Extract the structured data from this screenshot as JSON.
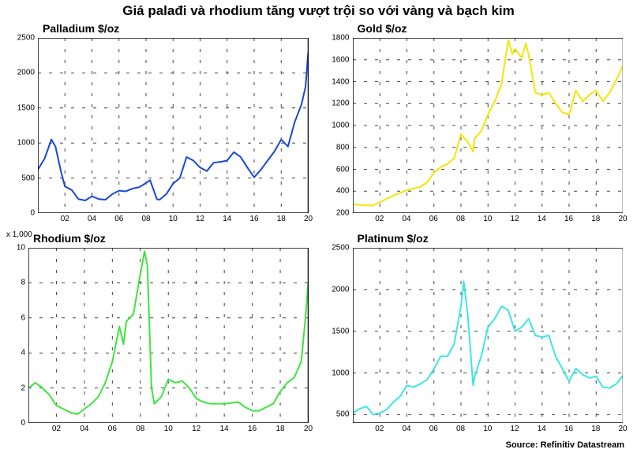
{
  "title": "Giá palađi và rhodium tăng vượt trội so với vàng và bạch kim",
  "source_label": "Source: Refinitiv Datastream",
  "layout": {
    "rows": 2,
    "cols": 2
  },
  "global": {
    "background_color": "#ffffff",
    "plot_bg_color": "#ffffff",
    "axis_color": "#000000",
    "grid_color": "#444444",
    "tick_fontsize": 10,
    "title_fontsize": 14,
    "main_title_fontsize": 17
  },
  "panels": [
    {
      "id": "palladium",
      "title": "Palladium $/oz",
      "type": "line",
      "line_color": "#1848d8",
      "line_width": 2,
      "xlim": [
        2000,
        2020
      ],
      "ylim": [
        0,
        2500
      ],
      "ytick_step": 500,
      "yticks": [
        0,
        500,
        1000,
        1500,
        2000,
        2500
      ],
      "xticks": [
        2002,
        2004,
        2006,
        2008,
        2010,
        2012,
        2014,
        2016,
        2018,
        2020
      ],
      "xtick_labels": [
        "02",
        "04",
        "06",
        "08",
        "10",
        "12",
        "14",
        "16",
        "18",
        "20"
      ],
      "series": [
        {
          "x": 2000.0,
          "y": 620
        },
        {
          "x": 2000.5,
          "y": 780
        },
        {
          "x": 2001.0,
          "y": 1050
        },
        {
          "x": 2001.3,
          "y": 950
        },
        {
          "x": 2001.7,
          "y": 600
        },
        {
          "x": 2002.0,
          "y": 380
        },
        {
          "x": 2002.5,
          "y": 330
        },
        {
          "x": 2003.0,
          "y": 200
        },
        {
          "x": 2003.5,
          "y": 180
        },
        {
          "x": 2004.0,
          "y": 240
        },
        {
          "x": 2004.5,
          "y": 200
        },
        {
          "x": 2005.0,
          "y": 190
        },
        {
          "x": 2005.5,
          "y": 270
        },
        {
          "x": 2006.0,
          "y": 320
        },
        {
          "x": 2006.5,
          "y": 310
        },
        {
          "x": 2007.0,
          "y": 350
        },
        {
          "x": 2007.5,
          "y": 370
        },
        {
          "x": 2008.0,
          "y": 430
        },
        {
          "x": 2008.3,
          "y": 470
        },
        {
          "x": 2008.8,
          "y": 200
        },
        {
          "x": 2009.0,
          "y": 190
        },
        {
          "x": 2009.5,
          "y": 270
        },
        {
          "x": 2010.0,
          "y": 420
        },
        {
          "x": 2010.5,
          "y": 500
        },
        {
          "x": 2011.0,
          "y": 800
        },
        {
          "x": 2011.5,
          "y": 750
        },
        {
          "x": 2012.0,
          "y": 650
        },
        {
          "x": 2012.5,
          "y": 600
        },
        {
          "x": 2013.0,
          "y": 720
        },
        {
          "x": 2013.5,
          "y": 730
        },
        {
          "x": 2014.0,
          "y": 750
        },
        {
          "x": 2014.5,
          "y": 870
        },
        {
          "x": 2015.0,
          "y": 800
        },
        {
          "x": 2015.5,
          "y": 650
        },
        {
          "x": 2016.0,
          "y": 510
        },
        {
          "x": 2016.5,
          "y": 620
        },
        {
          "x": 2017.0,
          "y": 750
        },
        {
          "x": 2017.5,
          "y": 880
        },
        {
          "x": 2018.0,
          "y": 1050
        },
        {
          "x": 2018.5,
          "y": 950
        },
        {
          "x": 2019.0,
          "y": 1300
        },
        {
          "x": 2019.5,
          "y": 1550
        },
        {
          "x": 2019.8,
          "y": 1800
        },
        {
          "x": 2020.0,
          "y": 2300
        }
      ]
    },
    {
      "id": "gold",
      "title": "Gold $/oz",
      "type": "line",
      "line_color": "#f5e600",
      "line_width": 2,
      "xlim": [
        2000,
        2020
      ],
      "ylim": [
        200,
        1800
      ],
      "ytick_step": 200,
      "yticks": [
        200,
        400,
        600,
        800,
        1000,
        1200,
        1400,
        1600,
        1800
      ],
      "xticks": [
        2002,
        2004,
        2006,
        2008,
        2010,
        2012,
        2014,
        2016,
        2018,
        2020
      ],
      "xtick_labels": [
        "02",
        "04",
        "06",
        "08",
        "10",
        "12",
        "14",
        "16",
        "18",
        "20"
      ],
      "series": [
        {
          "x": 2000.0,
          "y": 280
        },
        {
          "x": 2001.0,
          "y": 270
        },
        {
          "x": 2001.5,
          "y": 270
        },
        {
          "x": 2002.0,
          "y": 300
        },
        {
          "x": 2003.0,
          "y": 360
        },
        {
          "x": 2004.0,
          "y": 410
        },
        {
          "x": 2005.0,
          "y": 440
        },
        {
          "x": 2005.5,
          "y": 480
        },
        {
          "x": 2006.0,
          "y": 570
        },
        {
          "x": 2006.5,
          "y": 620
        },
        {
          "x": 2007.0,
          "y": 650
        },
        {
          "x": 2007.5,
          "y": 700
        },
        {
          "x": 2008.0,
          "y": 920
        },
        {
          "x": 2008.5,
          "y": 850
        },
        {
          "x": 2008.9,
          "y": 760
        },
        {
          "x": 2009.0,
          "y": 880
        },
        {
          "x": 2009.5,
          "y": 950
        },
        {
          "x": 2010.0,
          "y": 1100
        },
        {
          "x": 2010.5,
          "y": 1220
        },
        {
          "x": 2011.0,
          "y": 1380
        },
        {
          "x": 2011.5,
          "y": 1780
        },
        {
          "x": 2011.8,
          "y": 1650
        },
        {
          "x": 2012.0,
          "y": 1700
        },
        {
          "x": 2012.5,
          "y": 1620
        },
        {
          "x": 2012.8,
          "y": 1750
        },
        {
          "x": 2013.0,
          "y": 1650
        },
        {
          "x": 2013.5,
          "y": 1300
        },
        {
          "x": 2014.0,
          "y": 1280
        },
        {
          "x": 2014.5,
          "y": 1300
        },
        {
          "x": 2015.0,
          "y": 1200
        },
        {
          "x": 2015.5,
          "y": 1120
        },
        {
          "x": 2016.0,
          "y": 1100
        },
        {
          "x": 2016.5,
          "y": 1320
        },
        {
          "x": 2017.0,
          "y": 1220
        },
        {
          "x": 2017.5,
          "y": 1280
        },
        {
          "x": 2018.0,
          "y": 1320
        },
        {
          "x": 2018.5,
          "y": 1220
        },
        {
          "x": 2019.0,
          "y": 1300
        },
        {
          "x": 2019.5,
          "y": 1420
        },
        {
          "x": 2020.0,
          "y": 1550
        }
      ]
    },
    {
      "id": "rhodium",
      "title": "Rhodium $/oz",
      "type": "line",
      "line_color": "#3de63d",
      "line_width": 2,
      "y_prefix": "x 1,000",
      "xlim": [
        2000,
        2020
      ],
      "ylim": [
        0,
        10
      ],
      "ytick_step": 2,
      "yticks": [
        0,
        2,
        4,
        6,
        8,
        10
      ],
      "xticks": [
        2002,
        2004,
        2006,
        2008,
        2010,
        2012,
        2014,
        2016,
        2018,
        2020
      ],
      "xtick_labels": [
        "02",
        "04",
        "06",
        "08",
        "10",
        "12",
        "14",
        "16",
        "18",
        "20"
      ],
      "series": [
        {
          "x": 2000.0,
          "y": 2.0
        },
        {
          "x": 2000.5,
          "y": 2.3
        },
        {
          "x": 2001.0,
          "y": 2.0
        },
        {
          "x": 2001.5,
          "y": 1.6
        },
        {
          "x": 2002.0,
          "y": 1.0
        },
        {
          "x": 2002.5,
          "y": 0.8
        },
        {
          "x": 2003.0,
          "y": 0.6
        },
        {
          "x": 2003.5,
          "y": 0.5
        },
        {
          "x": 2004.0,
          "y": 0.8
        },
        {
          "x": 2004.5,
          "y": 1.1
        },
        {
          "x": 2005.0,
          "y": 1.5
        },
        {
          "x": 2005.5,
          "y": 2.3
        },
        {
          "x": 2006.0,
          "y": 3.5
        },
        {
          "x": 2006.5,
          "y": 5.5
        },
        {
          "x": 2006.8,
          "y": 4.5
        },
        {
          "x": 2007.0,
          "y": 5.8
        },
        {
          "x": 2007.5,
          "y": 6.2
        },
        {
          "x": 2008.0,
          "y": 8.5
        },
        {
          "x": 2008.3,
          "y": 9.8
        },
        {
          "x": 2008.5,
          "y": 9.0
        },
        {
          "x": 2008.8,
          "y": 2.0
        },
        {
          "x": 2009.0,
          "y": 1.1
        },
        {
          "x": 2009.5,
          "y": 1.5
        },
        {
          "x": 2010.0,
          "y": 2.5
        },
        {
          "x": 2010.5,
          "y": 2.3
        },
        {
          "x": 2011.0,
          "y": 2.4
        },
        {
          "x": 2011.5,
          "y": 2.0
        },
        {
          "x": 2012.0,
          "y": 1.4
        },
        {
          "x": 2012.5,
          "y": 1.2
        },
        {
          "x": 2013.0,
          "y": 1.1
        },
        {
          "x": 2014.0,
          "y": 1.1
        },
        {
          "x": 2015.0,
          "y": 1.2
        },
        {
          "x": 2015.5,
          "y": 0.9
        },
        {
          "x": 2016.0,
          "y": 0.7
        },
        {
          "x": 2016.5,
          "y": 0.7
        },
        {
          "x": 2017.0,
          "y": 0.9
        },
        {
          "x": 2017.5,
          "y": 1.1
        },
        {
          "x": 2018.0,
          "y": 1.8
        },
        {
          "x": 2018.5,
          "y": 2.3
        },
        {
          "x": 2019.0,
          "y": 2.6
        },
        {
          "x": 2019.5,
          "y": 3.5
        },
        {
          "x": 2019.8,
          "y": 6.0
        },
        {
          "x": 2020.0,
          "y": 8.0
        }
      ]
    },
    {
      "id": "platinum",
      "title": "Platinum $/oz",
      "type": "line",
      "line_color": "#3de6e6",
      "line_width": 2,
      "xlim": [
        2000,
        2020
      ],
      "ylim": [
        400,
        2500
      ],
      "ytick_step": 500,
      "yticks": [
        500,
        1000,
        1500,
        2000,
        2500
      ],
      "xticks": [
        2002,
        2004,
        2006,
        2008,
        2010,
        2012,
        2014,
        2016,
        2018,
        2020
      ],
      "xtick_labels": [
        "02",
        "04",
        "06",
        "08",
        "10",
        "12",
        "14",
        "16",
        "18",
        "20"
      ],
      "series": [
        {
          "x": 2000.0,
          "y": 520
        },
        {
          "x": 2000.5,
          "y": 570
        },
        {
          "x": 2001.0,
          "y": 600
        },
        {
          "x": 2001.5,
          "y": 500
        },
        {
          "x": 2002.0,
          "y": 520
        },
        {
          "x": 2002.5,
          "y": 560
        },
        {
          "x": 2003.0,
          "y": 650
        },
        {
          "x": 2003.5,
          "y": 720
        },
        {
          "x": 2004.0,
          "y": 850
        },
        {
          "x": 2004.5,
          "y": 830
        },
        {
          "x": 2005.0,
          "y": 870
        },
        {
          "x": 2005.5,
          "y": 920
        },
        {
          "x": 2006.0,
          "y": 1050
        },
        {
          "x": 2006.5,
          "y": 1200
        },
        {
          "x": 2007.0,
          "y": 1200
        },
        {
          "x": 2007.5,
          "y": 1350
        },
        {
          "x": 2008.0,
          "y": 1800
        },
        {
          "x": 2008.2,
          "y": 2100
        },
        {
          "x": 2008.5,
          "y": 1700
        },
        {
          "x": 2008.9,
          "y": 850
        },
        {
          "x": 2009.0,
          "y": 950
        },
        {
          "x": 2009.5,
          "y": 1200
        },
        {
          "x": 2010.0,
          "y": 1550
        },
        {
          "x": 2010.5,
          "y": 1650
        },
        {
          "x": 2011.0,
          "y": 1800
        },
        {
          "x": 2011.5,
          "y": 1750
        },
        {
          "x": 2012.0,
          "y": 1500
        },
        {
          "x": 2012.5,
          "y": 1550
        },
        {
          "x": 2013.0,
          "y": 1650
        },
        {
          "x": 2013.5,
          "y": 1450
        },
        {
          "x": 2014.0,
          "y": 1430
        },
        {
          "x": 2014.5,
          "y": 1450
        },
        {
          "x": 2015.0,
          "y": 1200
        },
        {
          "x": 2015.5,
          "y": 1050
        },
        {
          "x": 2016.0,
          "y": 900
        },
        {
          "x": 2016.5,
          "y": 1050
        },
        {
          "x": 2017.0,
          "y": 980
        },
        {
          "x": 2017.5,
          "y": 940
        },
        {
          "x": 2018.0,
          "y": 960
        },
        {
          "x": 2018.5,
          "y": 830
        },
        {
          "x": 2019.0,
          "y": 820
        },
        {
          "x": 2019.5,
          "y": 870
        },
        {
          "x": 2020.0,
          "y": 970
        }
      ]
    }
  ]
}
